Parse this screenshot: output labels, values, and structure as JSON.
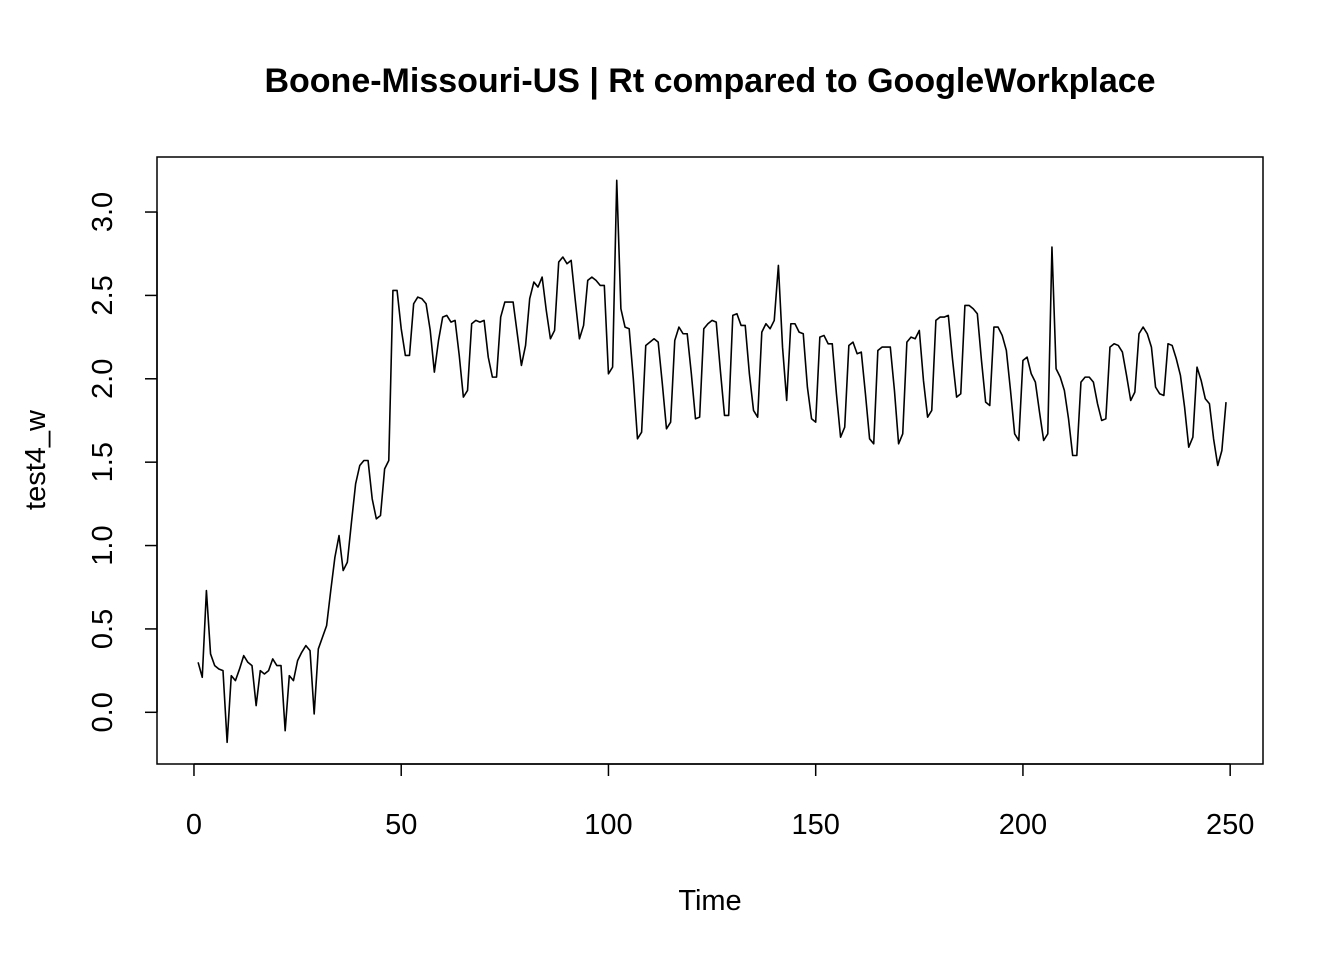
{
  "chart_data": {
    "type": "line",
    "title": "Boone-Missouri-US | Rt compared to GoogleWorkplace",
    "xlabel": "Time",
    "ylabel": "test4_w",
    "xlim": [
      -8.92,
      257.92
    ],
    "ylim": [
      -0.31,
      3.33
    ],
    "x_ticks": [
      0,
      50,
      100,
      150,
      200,
      250
    ],
    "y_ticks": [
      0.0,
      0.5,
      1.0,
      1.5,
      2.0,
      2.5,
      3.0
    ],
    "x_tick_labels": [
      "0",
      "50",
      "100",
      "150",
      "200",
      "250"
    ],
    "y_tick_labels": [
      "0.0",
      "0.5",
      "1.0",
      "1.5",
      "2.0",
      "2.5",
      "3.0"
    ],
    "grid": false,
    "line_color": "#000000",
    "x_start": 1,
    "values": [
      0.3,
      0.21,
      0.73,
      0.35,
      0.28,
      0.26,
      0.25,
      -0.18,
      0.22,
      0.19,
      0.26,
      0.34,
      0.3,
      0.28,
      0.04,
      0.25,
      0.23,
      0.25,
      0.32,
      0.28,
      0.28,
      -0.11,
      0.22,
      0.19,
      0.31,
      0.36,
      0.4,
      0.37,
      -0.01,
      0.38,
      0.45,
      0.52,
      0.73,
      0.93,
      1.06,
      0.85,
      0.9,
      1.14,
      1.37,
      1.48,
      1.51,
      1.51,
      1.28,
      1.16,
      1.18,
      1.46,
      1.51,
      2.53,
      2.53,
      2.3,
      2.14,
      2.14,
      2.45,
      2.49,
      2.48,
      2.45,
      2.29,
      2.04,
      2.23,
      2.37,
      2.38,
      2.34,
      2.35,
      2.14,
      1.89,
      1.93,
      2.33,
      2.35,
      2.34,
      2.35,
      2.13,
      2.01,
      2.01,
      2.37,
      2.46,
      2.46,
      2.46,
      2.27,
      2.08,
      2.2,
      2.48,
      2.58,
      2.55,
      2.61,
      2.41,
      2.24,
      2.29,
      2.7,
      2.73,
      2.69,
      2.71,
      2.47,
      2.24,
      2.32,
      2.59,
      2.61,
      2.59,
      2.56,
      2.56,
      2.03,
      2.07,
      3.19,
      2.42,
      2.31,
      2.3,
      2.0,
      1.64,
      1.68,
      2.2,
      2.22,
      2.24,
      2.22,
      1.97,
      1.7,
      1.74,
      2.23,
      2.31,
      2.27,
      2.27,
      2.03,
      1.76,
      1.77,
      2.3,
      2.33,
      2.35,
      2.34,
      2.05,
      1.78,
      1.78,
      2.38,
      2.39,
      2.32,
      2.32,
      2.03,
      1.81,
      1.77,
      2.28,
      2.33,
      2.3,
      2.35,
      2.68,
      2.19,
      1.87,
      2.33,
      2.33,
      2.28,
      2.27,
      1.95,
      1.76,
      1.74,
      2.25,
      2.26,
      2.21,
      2.21,
      1.91,
      1.65,
      1.71,
      2.2,
      2.22,
      2.15,
      2.16,
      1.91,
      1.64,
      1.61,
      2.17,
      2.19,
      2.19,
      2.19,
      1.93,
      1.61,
      1.67,
      2.22,
      2.25,
      2.24,
      2.29,
      1.99,
      1.77,
      1.81,
      2.35,
      2.37,
      2.37,
      2.38,
      2.12,
      1.89,
      1.91,
      2.44,
      2.44,
      2.42,
      2.39,
      2.11,
      1.86,
      1.84,
      2.31,
      2.31,
      2.26,
      2.17,
      1.93,
      1.67,
      1.63,
      2.11,
      2.13,
      2.03,
      1.98,
      1.8,
      1.63,
      1.67,
      2.79,
      2.06,
      2.01,
      1.93,
      1.76,
      1.54,
      1.54,
      1.98,
      2.01,
      2.01,
      1.98,
      1.85,
      1.75,
      1.76,
      2.19,
      2.21,
      2.2,
      2.16,
      2.02,
      1.87,
      1.92,
      2.27,
      2.31,
      2.27,
      2.19,
      1.95,
      1.91,
      1.9,
      2.21,
      2.2,
      2.12,
      2.02,
      1.83,
      1.59,
      1.65,
      2.07,
      1.99,
      1.88,
      1.85,
      1.64,
      1.48,
      1.57,
      1.86
    ]
  }
}
